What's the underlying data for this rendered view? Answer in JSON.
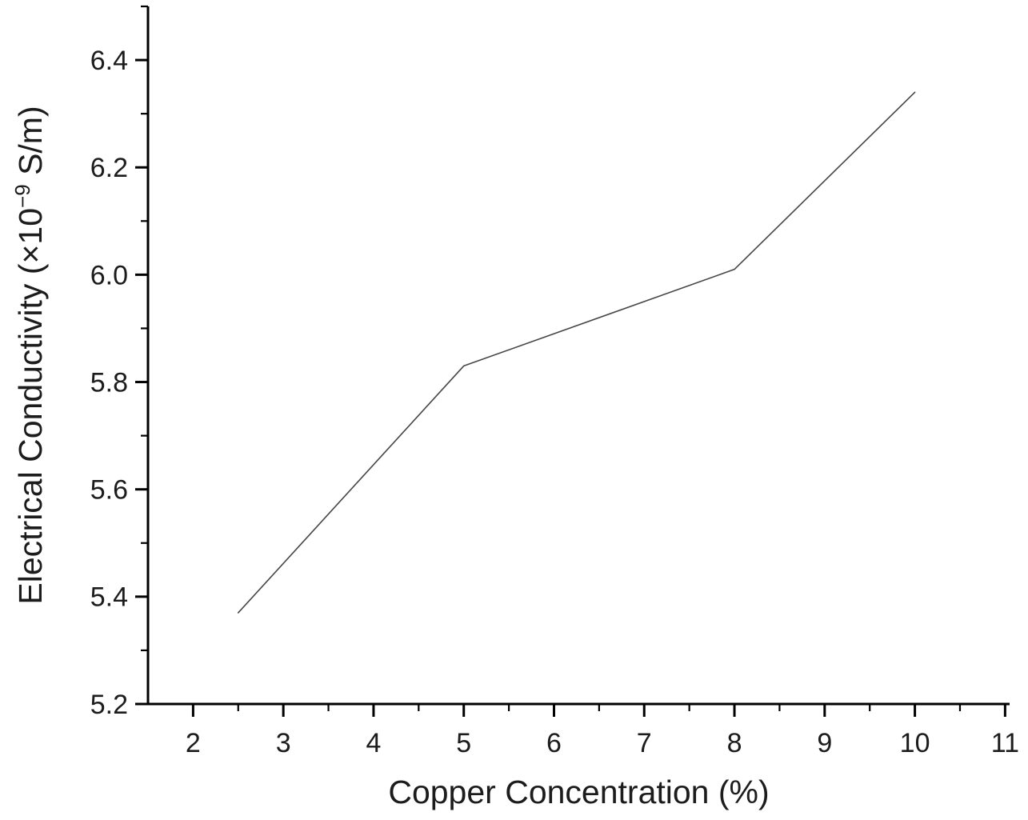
{
  "chart_data": {
    "type": "line",
    "title": "",
    "xlabel": "Copper Concentration (%)",
    "ylabel": "Electrical Conductivity (×10⁻⁹ S/m)",
    "ylabel_parts": {
      "prefix": "Electrical Conductivity (×10",
      "superscript": "−9",
      "suffix": " S/m)"
    },
    "xlim": [
      1.5,
      11.05
    ],
    "ylim": [
      5.2,
      6.5
    ],
    "grid": false,
    "legend": "none",
    "x_axis": {
      "major_ticks": [
        2,
        3,
        4,
        5,
        6,
        7,
        8,
        9,
        10,
        11
      ],
      "major_labels": [
        "2",
        "3",
        "4",
        "5",
        "6",
        "7",
        "8",
        "9",
        "10",
        "11"
      ],
      "minor_ticks": [
        2.5,
        3.5,
        4.5,
        5.5,
        6.5,
        7.5,
        8.5,
        9.5,
        10.5
      ]
    },
    "y_axis": {
      "major_ticks": [
        5.2,
        5.4,
        5.6,
        5.8,
        6.0,
        6.2,
        6.4
      ],
      "major_labels": [
        "5.2",
        "5.4",
        "5.6",
        "5.8",
        "6.0",
        "6.2",
        "6.4"
      ],
      "minor_ticks": [
        5.3,
        5.5,
        5.7,
        5.9,
        6.1,
        6.3,
        6.5
      ]
    },
    "series": [
      {
        "name": "electrical-conductivity-vs-copper-concentration",
        "x": [
          2.5,
          5.0,
          8.0,
          10.0
        ],
        "y": [
          5.37,
          5.83,
          6.01,
          6.34
        ],
        "color": "#454545",
        "width": 1.6
      }
    ],
    "colors": {
      "axis": "#000000",
      "text": "#1c1c1c",
      "background": "#ffffff"
    }
  }
}
